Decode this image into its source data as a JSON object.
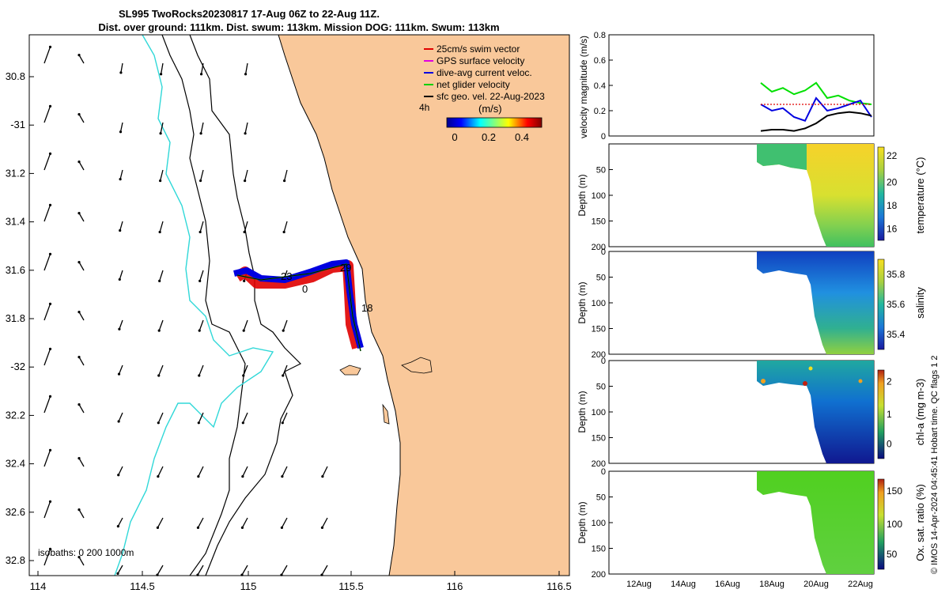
{
  "title": {
    "line1": "SL995 TwoRocks20230817 17-Aug 06Z to 22-Aug 11Z.",
    "line2": "Dist. over ground: 111km. Dist. swum: 113km. Mission DOG: 111km. Swum: 113km"
  },
  "map": {
    "lon_ticks": [
      "114",
      "114.5",
      "115",
      "115.5",
      "116",
      "116.5"
    ],
    "lat_ticks": [
      "30.8",
      "-31",
      "31.2",
      "31.4",
      "31.6",
      "31.8",
      "-32",
      "32.2",
      "32.4",
      "32.6",
      "32.8"
    ],
    "legend": [
      {
        "label": "25cm/s swim vector",
        "color": "#e00000"
      },
      {
        "label": "GPS surface velocity",
        "color": "#e000e0"
      },
      {
        "label": "dive-avg current veloc.",
        "color": "#0000e0"
      },
      {
        "label": "net glider velocity",
        "color": "#00d000"
      },
      {
        "label": "sfc geo. vel. 22-Aug-2023",
        "color": "#000000"
      }
    ],
    "time_marker": "4h",
    "colorbar": {
      "label": "(m/s)",
      "ticks": [
        "0",
        "0.2",
        "0.4"
      ]
    },
    "track_labels": [
      "23",
      "0",
      "29",
      "18"
    ],
    "isobath_label": "isobaths: 0   200  1000m"
  },
  "chart_data": [
    {
      "type": "line",
      "title": "velocity magnitude",
      "ylabel": "velocity magnitude (m/s)",
      "ylim": [
        0,
        0.8
      ],
      "yticks": [
        "0",
        "0.2",
        "0.4",
        "0.6",
        "0.8"
      ],
      "x_days": [
        17.5,
        18,
        18.5,
        19,
        19.5,
        20,
        20.5,
        21,
        21.5,
        22,
        22.5
      ],
      "series": [
        {
          "name": "net glider velocity",
          "color": "#00e000",
          "values": [
            0.42,
            0.35,
            0.38,
            0.33,
            0.36,
            0.42,
            0.3,
            0.32,
            0.28,
            0.26,
            0.25
          ]
        },
        {
          "name": "dive-avg current",
          "color": "#0000e0",
          "values": [
            0.25,
            0.2,
            0.22,
            0.15,
            0.12,
            0.3,
            0.2,
            0.22,
            0.25,
            0.28,
            0.15
          ]
        },
        {
          "name": "swim vector",
          "color": "#e00000",
          "values": [
            0.25,
            0.25,
            0.25,
            0.25,
            0.25,
            0.25,
            0.25,
            0.25,
            0.25,
            0.25,
            0.25
          ]
        },
        {
          "name": "sfc geo vel",
          "color": "#000000",
          "values": [
            0.04,
            0.05,
            0.05,
            0.04,
            0.06,
            0.1,
            0.16,
            0.18,
            0.19,
            0.18,
            0.16
          ]
        }
      ]
    },
    {
      "type": "heatmap",
      "ylabel": "Depth (m)",
      "cblabel": "temperature (°C)",
      "cbticks": [
        "16",
        "18",
        "20",
        "22"
      ],
      "yticks": [
        "50",
        "100",
        "150",
        "200"
      ]
    },
    {
      "type": "heatmap",
      "ylabel": "Depth (m)",
      "cblabel": "salinity",
      "cbticks": [
        "35.4",
        "35.6",
        "35.8"
      ],
      "yticks": [
        "0",
        "50",
        "100",
        "150",
        "200"
      ]
    },
    {
      "type": "heatmap",
      "ylabel": "Depth (m)",
      "cblabel": "chl-a (mg m-3)",
      "cbticks": [
        "0",
        "1",
        "2"
      ],
      "yticks": [
        "0",
        "50",
        "100",
        "150",
        "200"
      ]
    },
    {
      "type": "heatmap",
      "ylabel": "Depth (m)",
      "cblabel": "Ox. sat. ratio (%)",
      "cbticks": [
        "50",
        "100",
        "150"
      ],
      "yticks": [
        "0",
        "50",
        "100",
        "150",
        "200"
      ]
    }
  ],
  "time_axis": [
    "12Aug",
    "14Aug",
    "16Aug",
    "18Aug",
    "20Aug",
    "22Aug"
  ],
  "footer": "© IMOS 14-Apr-2024 04:45:41 Hobart time. QC flags 1  2"
}
